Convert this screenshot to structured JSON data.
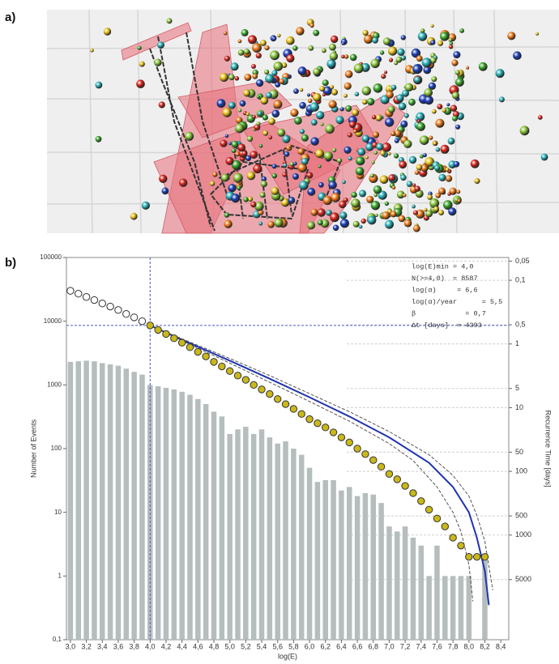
{
  "panel_a_label": "a)",
  "chart_data": {
    "type": "bar",
    "label": "b)",
    "xlabel": "log(E)",
    "ylabel": "Number of Events",
    "y2label": "Recurrence Time [days]",
    "log_y": true,
    "xlim": [
      2.95,
      8.5
    ],
    "ylim": [
      0.1,
      100000
    ],
    "y2lim": [
      43930,
      0.04393
    ],
    "xticks": [
      {
        "value": 3.0,
        "label": "3,0"
      },
      {
        "value": 3.2,
        "label": "3,2"
      },
      {
        "value": 3.4,
        "label": "3,4"
      },
      {
        "value": 3.6,
        "label": "3,6"
      },
      {
        "value": 3.8,
        "label": "3,8"
      },
      {
        "value": 4.0,
        "label": "4,0"
      },
      {
        "value": 4.2,
        "label": "4,2"
      },
      {
        "value": 4.4,
        "label": "4,4"
      },
      {
        "value": 4.6,
        "label": "4,6"
      },
      {
        "value": 4.8,
        "label": "4,8"
      },
      {
        "value": 5.0,
        "label": "5,0"
      },
      {
        "value": 5.2,
        "label": "5,2"
      },
      {
        "value": 5.4,
        "label": "5,4"
      },
      {
        "value": 5.6,
        "label": "5,6"
      },
      {
        "value": 5.8,
        "label": "5,8"
      },
      {
        "value": 6.0,
        "label": "6,0"
      },
      {
        "value": 6.2,
        "label": "6,2"
      },
      {
        "value": 6.4,
        "label": "6,4"
      },
      {
        "value": 6.6,
        "label": "6,6"
      },
      {
        "value": 6.8,
        "label": "6,8"
      },
      {
        "value": 7.0,
        "label": "7,0"
      },
      {
        "value": 7.2,
        "label": "7,2"
      },
      {
        "value": 7.4,
        "label": "7,4"
      },
      {
        "value": 7.6,
        "label": "7,6"
      },
      {
        "value": 7.8,
        "label": "7,8"
      },
      {
        "value": 8.0,
        "label": "8,0"
      },
      {
        "value": 8.2,
        "label": "8,2"
      },
      {
        "value": 8.4,
        "label": "8,4"
      }
    ],
    "yticks": [
      {
        "value": 0.1,
        "label": "0,1"
      },
      1,
      10,
      100,
      1000,
      10000,
      100000
    ],
    "y2ticks": [
      {
        "value": 0.05,
        "label": "0,05"
      },
      {
        "value": 0.1,
        "label": "0,1"
      },
      {
        "value": 0.5,
        "label": "0,5"
      },
      1,
      5,
      10,
      50,
      100,
      500,
      1000,
      5000
    ],
    "x": [
      3.0,
      3.1,
      3.2,
      3.3,
      3.4,
      3.5,
      3.6,
      3.7,
      3.8,
      3.9,
      4.0,
      4.1,
      4.2,
      4.3,
      4.4,
      4.5,
      4.6,
      4.7,
      4.8,
      4.9,
      5.0,
      5.1,
      5.2,
      5.3,
      5.4,
      5.5,
      5.6,
      5.7,
      5.8,
      5.9,
      6.0,
      6.1,
      6.2,
      6.3,
      6.4,
      6.5,
      6.6,
      6.7,
      6.8,
      6.9,
      7.0,
      7.1,
      7.2,
      7.3,
      7.4,
      7.5,
      7.6,
      7.7,
      7.8,
      7.9,
      8.0,
      8.2
    ],
    "values": [
      2300,
      2350,
      2400,
      2350,
      2200,
      2100,
      2000,
      1800,
      1600,
      1450,
      1000,
      950,
      900,
      850,
      780,
      700,
      600,
      500,
      380,
      320,
      170,
      200,
      220,
      170,
      200,
      150,
      120,
      130,
      100,
      80,
      50,
      30,
      32,
      32,
      22,
      25,
      18,
      20,
      19,
      14,
      6,
      5,
      6,
      4,
      3,
      1,
      3,
      1,
      1,
      1,
      1,
      2
    ],
    "color": "#b5bdbd",
    "series": [
      {
        "type": "scatter",
        "color": "#ffffff",
        "x": [
          3.0,
          3.1,
          3.2,
          3.3,
          3.4,
          3.5,
          3.6,
          3.7,
          3.8,
          3.9
        ],
        "values": [
          30000,
          27000,
          24000,
          21500,
          19000,
          17000,
          15000,
          13000,
          11500,
          10000
        ]
      },
      {
        "type": "scatter",
        "color": "#c9b81a",
        "x": [
          4.0,
          4.1,
          4.2,
          4.3,
          4.4,
          4.5,
          4.6,
          4.7,
          4.8,
          4.9,
          5.0,
          5.1,
          5.2,
          5.3,
          5.4,
          5.5,
          5.6,
          5.7,
          5.8,
          5.9,
          6.0,
          6.1,
          6.2,
          6.3,
          6.4,
          6.5,
          6.6,
          6.7,
          6.8,
          6.9,
          7.0,
          7.1,
          7.2,
          7.3,
          7.4,
          7.5,
          7.6,
          7.7,
          7.8,
          7.9,
          8.0,
          8.1,
          8.2
        ],
        "values": [
          8587,
          7300,
          6300,
          5400,
          4600,
          3900,
          3300,
          2800,
          2300,
          1950,
          1650,
          1400,
          1200,
          1000,
          850,
          720,
          600,
          500,
          420,
          350,
          290,
          250,
          215,
          180,
          150,
          125,
          100,
          82,
          66,
          52,
          40,
          33,
          26,
          20,
          15,
          11,
          8,
          6,
          4,
          3,
          2,
          2,
          2
        ]
      },
      {
        "type": "line",
        "color": "#1f33b0",
        "width": 2,
        "x": [
          4.0,
          4.5,
          5.0,
          5.5,
          6.0,
          6.5,
          7.0,
          7.5,
          7.8,
          8.0,
          8.1,
          8.2,
          8.25
        ],
        "values": [
          8587,
          4500,
          2400,
          1250,
          640,
          320,
          150,
          60,
          25,
          10,
          4,
          1.2,
          0.35
        ]
      },
      {
        "type": "line",
        "color": "#555555",
        "dash": true,
        "width": 1,
        "x": [
          4.0,
          4.5,
          5.0,
          5.5,
          6.0,
          6.5,
          7.0,
          7.5,
          7.8,
          8.0,
          8.1,
          8.2,
          8.3
        ],
        "values": [
          8587,
          4700,
          2600,
          1400,
          730,
          380,
          185,
          80,
          38,
          18,
          9,
          3.5,
          0.6
        ]
      },
      {
        "type": "line",
        "color": "#555555",
        "dash": true,
        "width": 1,
        "x": [
          4.0,
          4.5,
          5.0,
          5.5,
          6.0,
          6.5,
          7.0,
          7.3,
          7.6,
          7.8,
          7.9,
          8.0,
          8.05
        ],
        "values": [
          8587,
          4300,
          2200,
          1100,
          550,
          270,
          120,
          65,
          25,
          10,
          5,
          1.5,
          0.4
        ]
      }
    ],
    "annotations": [
      "log(E)min = 4,0",
      "N(>=4,0)  = 8587",
      "log(α)     = 6,6",
      "log(α)/year      = 5,5",
      "β            = 0,7",
      "Δt [days]  = 4393"
    ]
  }
}
